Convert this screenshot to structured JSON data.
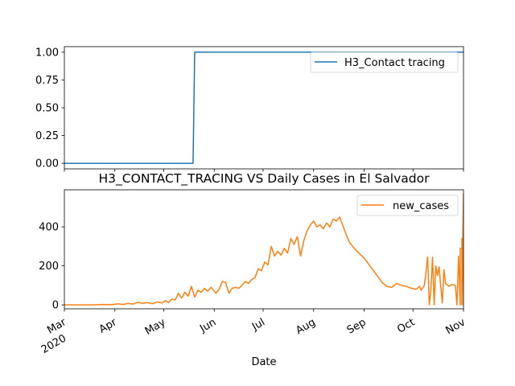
{
  "chart_data": [
    {
      "type": "line",
      "title": "",
      "xlabel": "",
      "ylabel": "",
      "ylim": [
        -0.05,
        1.05
      ],
      "yticks": [
        0.0,
        0.25,
        0.5,
        0.75,
        1.0
      ],
      "ytick_labels": [
        "0.00",
        "0.25",
        "0.50",
        "0.75",
        "1.00"
      ],
      "grid": false,
      "legend_position": "upper right",
      "series": [
        {
          "name": "H3_Contact tracing",
          "color": "#1f77b4",
          "drawstyle": "step",
          "points": [
            {
              "x": "2020-03-01",
              "y": 0
            },
            {
              "x": "2020-05-19",
              "y": 0
            },
            {
              "x": "2020-05-20",
              "y": 1
            },
            {
              "x": "2020-11-01",
              "y": 1
            }
          ]
        }
      ]
    },
    {
      "type": "line",
      "title": "H3_CONTACT_TRACING VS Daily Cases in El Salvador",
      "xlabel": "Date",
      "ylabel": "",
      "ylim": [
        -20,
        590
      ],
      "yticks": [
        0,
        200,
        400
      ],
      "ytick_labels": [
        "0",
        "200",
        "400"
      ],
      "xlim": [
        "2020-03-01",
        "2020-11-01"
      ],
      "xticks": [
        {
          "date": "2020-03-01",
          "label": "Mar",
          "year": "2020"
        },
        {
          "date": "2020-04-01",
          "label": "Apr"
        },
        {
          "date": "2020-05-01",
          "label": "May"
        },
        {
          "date": "2020-06-01",
          "label": "Jun"
        },
        {
          "date": "2020-07-01",
          "label": "Jul"
        },
        {
          "date": "2020-08-01",
          "label": "Aug"
        },
        {
          "date": "2020-09-01",
          "label": "Sep"
        },
        {
          "date": "2020-10-01",
          "label": "Oct"
        },
        {
          "date": "2020-11-01",
          "label": "Nov"
        }
      ],
      "grid": false,
      "legend_position": "upper right",
      "series": [
        {
          "name": "new_cases",
          "color": "#ff7f0e",
          "points": [
            {
              "x": "2020-03-01",
              "y": 0
            },
            {
              "x": "2020-03-18",
              "y": 0
            },
            {
              "x": "2020-03-25",
              "y": 2
            },
            {
              "x": "2020-03-30",
              "y": 1
            },
            {
              "x": "2020-04-03",
              "y": 5
            },
            {
              "x": "2020-04-06",
              "y": 2
            },
            {
              "x": "2020-04-09",
              "y": 8
            },
            {
              "x": "2020-04-12",
              "y": 4
            },
            {
              "x": "2020-04-15",
              "y": 14
            },
            {
              "x": "2020-04-18",
              "y": 8
            },
            {
              "x": "2020-04-21",
              "y": 12
            },
            {
              "x": "2020-04-24",
              "y": 6
            },
            {
              "x": "2020-04-27",
              "y": 15
            },
            {
              "x": "2020-04-30",
              "y": 10
            },
            {
              "x": "2020-05-02",
              "y": 22
            },
            {
              "x": "2020-05-04",
              "y": 12
            },
            {
              "x": "2020-05-06",
              "y": 30
            },
            {
              "x": "2020-05-08",
              "y": 25
            },
            {
              "x": "2020-05-10",
              "y": 60
            },
            {
              "x": "2020-05-12",
              "y": 35
            },
            {
              "x": "2020-05-14",
              "y": 65
            },
            {
              "x": "2020-05-16",
              "y": 45
            },
            {
              "x": "2020-05-18",
              "y": 95
            },
            {
              "x": "2020-05-20",
              "y": 40
            },
            {
              "x": "2020-05-22",
              "y": 75
            },
            {
              "x": "2020-05-24",
              "y": 65
            },
            {
              "x": "2020-05-26",
              "y": 85
            },
            {
              "x": "2020-05-28",
              "y": 70
            },
            {
              "x": "2020-05-30",
              "y": 90
            },
            {
              "x": "2020-06-02",
              "y": 60
            },
            {
              "x": "2020-06-04",
              "y": 80
            },
            {
              "x": "2020-06-06",
              "y": 120
            },
            {
              "x": "2020-06-08",
              "y": 115
            },
            {
              "x": "2020-06-10",
              "y": 60
            },
            {
              "x": "2020-06-12",
              "y": 85
            },
            {
              "x": "2020-06-14",
              "y": 90
            },
            {
              "x": "2020-06-16",
              "y": 85
            },
            {
              "x": "2020-06-18",
              "y": 100
            },
            {
              "x": "2020-06-20",
              "y": 120
            },
            {
              "x": "2020-06-22",
              "y": 110
            },
            {
              "x": "2020-06-24",
              "y": 130
            },
            {
              "x": "2020-06-26",
              "y": 140
            },
            {
              "x": "2020-06-28",
              "y": 185
            },
            {
              "x": "2020-06-30",
              "y": 175
            },
            {
              "x": "2020-07-02",
              "y": 220
            },
            {
              "x": "2020-07-04",
              "y": 205
            },
            {
              "x": "2020-07-06",
              "y": 300
            },
            {
              "x": "2020-07-08",
              "y": 250
            },
            {
              "x": "2020-07-10",
              "y": 275
            },
            {
              "x": "2020-07-12",
              "y": 255
            },
            {
              "x": "2020-07-14",
              "y": 290
            },
            {
              "x": "2020-07-16",
              "y": 265
            },
            {
              "x": "2020-07-18",
              "y": 340
            },
            {
              "x": "2020-07-20",
              "y": 310
            },
            {
              "x": "2020-07-22",
              "y": 350
            },
            {
              "x": "2020-07-24",
              "y": 250
            },
            {
              "x": "2020-07-26",
              "y": 330
            },
            {
              "x": "2020-07-28",
              "y": 380
            },
            {
              "x": "2020-07-30",
              "y": 410
            },
            {
              "x": "2020-08-01",
              "y": 430
            },
            {
              "x": "2020-08-03",
              "y": 400
            },
            {
              "x": "2020-08-05",
              "y": 410
            },
            {
              "x": "2020-08-07",
              "y": 390
            },
            {
              "x": "2020-08-09",
              "y": 420
            },
            {
              "x": "2020-08-11",
              "y": 400
            },
            {
              "x": "2020-08-13",
              "y": 440
            },
            {
              "x": "2020-08-15",
              "y": 430
            },
            {
              "x": "2020-08-17",
              "y": 450
            },
            {
              "x": "2020-08-19",
              "y": 405
            },
            {
              "x": "2020-08-21",
              "y": 360
            },
            {
              "x": "2020-08-23",
              "y": 320
            },
            {
              "x": "2020-08-27",
              "y": 280
            },
            {
              "x": "2020-09-01",
              "y": 240
            },
            {
              "x": "2020-09-05",
              "y": 195
            },
            {
              "x": "2020-09-09",
              "y": 150
            },
            {
              "x": "2020-09-12",
              "y": 115
            },
            {
              "x": "2020-09-15",
              "y": 95
            },
            {
              "x": "2020-09-18",
              "y": 90
            },
            {
              "x": "2020-09-21",
              "y": 110
            },
            {
              "x": "2020-09-24",
              "y": 100
            },
            {
              "x": "2020-09-27",
              "y": 95
            },
            {
              "x": "2020-09-30",
              "y": 85
            },
            {
              "x": "2020-10-03",
              "y": 80
            },
            {
              "x": "2020-10-05",
              "y": 95
            },
            {
              "x": "2020-10-06",
              "y": 75
            },
            {
              "x": "2020-10-08",
              "y": 100
            },
            {
              "x": "2020-10-10",
              "y": 245
            },
            {
              "x": "2020-10-11",
              "y": 0
            },
            {
              "x": "2020-10-12",
              "y": 80
            },
            {
              "x": "2020-10-13",
              "y": 245
            },
            {
              "x": "2020-10-14",
              "y": 0
            },
            {
              "x": "2020-10-15",
              "y": 200
            },
            {
              "x": "2020-10-16",
              "y": 150
            },
            {
              "x": "2020-10-17",
              "y": 195
            },
            {
              "x": "2020-10-18",
              "y": 100
            },
            {
              "x": "2020-10-19",
              "y": 10
            },
            {
              "x": "2020-10-20",
              "y": 180
            },
            {
              "x": "2020-10-21",
              "y": 110
            },
            {
              "x": "2020-10-23",
              "y": 95
            },
            {
              "x": "2020-10-25",
              "y": 105
            },
            {
              "x": "2020-10-27",
              "y": 100
            },
            {
              "x": "2020-10-28",
              "y": 0
            },
            {
              "x": "2020-10-29",
              "y": 250
            },
            {
              "x": "2020-10-30",
              "y": 0
            },
            {
              "x": "2020-10-30",
              "y": 290
            },
            {
              "x": "2020-10-31",
              "y": 290
            },
            {
              "x": "2020-10-31",
              "y": 160
            },
            {
              "x": "2020-10-31",
              "y": 215
            },
            {
              "x": "2020-10-31",
              "y": 0
            },
            {
              "x": "2020-10-31",
              "y": 200
            },
            {
              "x": "2020-10-31",
              "y": 310
            },
            {
              "x": "2020-10-31",
              "y": 140
            },
            {
              "x": "2020-10-31",
              "y": 165
            },
            {
              "x": "2020-10-31",
              "y": 0
            },
            {
              "x": "2020-10-31",
              "y": 340
            },
            {
              "x": "2020-10-31",
              "y": 0
            },
            {
              "x": "2020-11-01",
              "y": 560
            },
            {
              "x": "2020-11-01",
              "y": 0
            },
            {
              "x": "2020-11-01",
              "y": 570
            }
          ]
        }
      ]
    }
  ]
}
